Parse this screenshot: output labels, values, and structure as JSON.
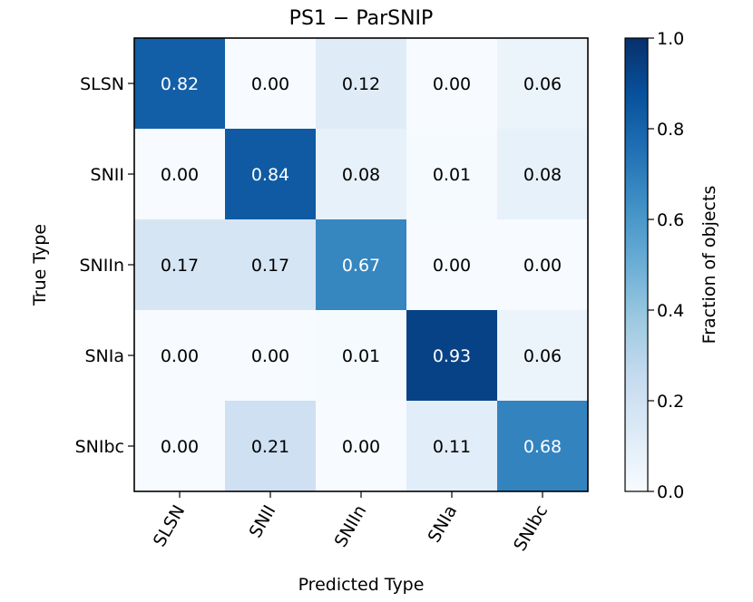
{
  "chart_data": {
    "type": "heatmap",
    "title": "PS1 − ParSNIP",
    "xlabel": "Predicted Type",
    "ylabel": "True Type",
    "x_categories": [
      "SLSN",
      "SNII",
      "SNIIn",
      "SNIa",
      "SNIbc"
    ],
    "y_categories": [
      "SLSN",
      "SNII",
      "SNIIn",
      "SNIa",
      "SNIbc"
    ],
    "values": [
      [
        0.82,
        0.0,
        0.12,
        0.0,
        0.06
      ],
      [
        0.0,
        0.84,
        0.08,
        0.01,
        0.08
      ],
      [
        0.17,
        0.17,
        0.67,
        0.0,
        0.0
      ],
      [
        0.0,
        0.0,
        0.01,
        0.93,
        0.06
      ],
      [
        0.0,
        0.21,
        0.0,
        0.11,
        0.68
      ]
    ],
    "value_labels": [
      [
        "0.82",
        "0.00",
        "0.12",
        "0.00",
        "0.06"
      ],
      [
        "0.00",
        "0.84",
        "0.08",
        "0.01",
        "0.08"
      ],
      [
        "0.17",
        "0.17",
        "0.67",
        "0.00",
        "0.00"
      ],
      [
        "0.00",
        "0.00",
        "0.01",
        "0.93",
        "0.06"
      ],
      [
        "0.00",
        "0.21",
        "0.00",
        "0.11",
        "0.68"
      ]
    ],
    "colormap": "Blues",
    "colorbar": {
      "label": "Fraction of objects",
      "range": [
        0.0,
        1.0
      ],
      "ticks": [
        0.0,
        0.2,
        0.4,
        0.6,
        0.8,
        1.0
      ],
      "tick_labels": [
        "0.0",
        "0.2",
        "0.4",
        "0.6",
        "0.8",
        "1.0"
      ]
    },
    "grid": false
  }
}
